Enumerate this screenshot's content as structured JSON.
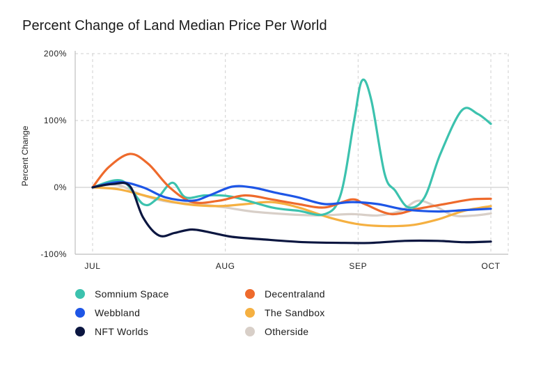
{
  "chart_data": {
    "type": "line",
    "title": "Percent Change of Land Median Price Per World",
    "ylabel": "Percent Change",
    "xlabel": "",
    "x_ticks": [
      "JUL",
      "AUG",
      "SEP",
      "OCT"
    ],
    "x_range": [
      0,
      3
    ],
    "y_ticks": [
      {
        "value": 200,
        "label": "200%"
      },
      {
        "value": 100,
        "label": "100%"
      },
      {
        "value": 0,
        "label": "0%"
      },
      {
        "value": -100,
        "label": "-100%"
      }
    ],
    "ylim": [
      -100,
      200
    ],
    "grid": "dashed",
    "legend_position": "bottom",
    "series": [
      {
        "name": "Somnium Space",
        "color": "#3cc2ae",
        "points": [
          [
            0,
            0
          ],
          [
            0.22,
            10
          ],
          [
            0.38,
            -25
          ],
          [
            0.48,
            -18
          ],
          [
            0.6,
            7
          ],
          [
            0.7,
            -15
          ],
          [
            0.85,
            -12
          ],
          [
            1.05,
            -14
          ],
          [
            1.35,
            -30
          ],
          [
            1.55,
            -35
          ],
          [
            1.75,
            -40
          ],
          [
            1.87,
            -10
          ],
          [
            1.97,
            100
          ],
          [
            2.03,
            160
          ],
          [
            2.1,
            130
          ],
          [
            2.2,
            20
          ],
          [
            2.28,
            -5
          ],
          [
            2.38,
            -30
          ],
          [
            2.5,
            -15
          ],
          [
            2.62,
            50
          ],
          [
            2.78,
            115
          ],
          [
            2.9,
            110
          ],
          [
            3.0,
            95
          ]
        ]
      },
      {
        "name": "Decentraland",
        "color": "#ee6a2c",
        "points": [
          [
            0,
            0
          ],
          [
            0.12,
            30
          ],
          [
            0.28,
            50
          ],
          [
            0.42,
            35
          ],
          [
            0.58,
            0
          ],
          [
            0.75,
            -22
          ],
          [
            0.95,
            -20
          ],
          [
            1.15,
            -12
          ],
          [
            1.35,
            -18
          ],
          [
            1.55,
            -25
          ],
          [
            1.75,
            -30
          ],
          [
            1.95,
            -18
          ],
          [
            2.05,
            -25
          ],
          [
            2.25,
            -40
          ],
          [
            2.45,
            -32
          ],
          [
            2.65,
            -25
          ],
          [
            2.85,
            -18
          ],
          [
            3.0,
            -17
          ]
        ]
      },
      {
        "name": "Webbland",
        "color": "#1e56e6",
        "points": [
          [
            0,
            0
          ],
          [
            0.2,
            8
          ],
          [
            0.38,
            0
          ],
          [
            0.55,
            -15
          ],
          [
            0.75,
            -20
          ],
          [
            0.88,
            -12
          ],
          [
            1.05,
            1
          ],
          [
            1.2,
            0
          ],
          [
            1.38,
            -8
          ],
          [
            1.55,
            -15
          ],
          [
            1.75,
            -25
          ],
          [
            1.95,
            -22
          ],
          [
            2.15,
            -25
          ],
          [
            2.35,
            -33
          ],
          [
            2.6,
            -36
          ],
          [
            2.8,
            -34
          ],
          [
            3.0,
            -32
          ]
        ]
      },
      {
        "name": "The Sandbox",
        "color": "#f5b041",
        "points": [
          [
            0,
            0
          ],
          [
            0.2,
            -3
          ],
          [
            0.45,
            -15
          ],
          [
            0.7,
            -25
          ],
          [
            0.95,
            -28
          ],
          [
            1.15,
            -25
          ],
          [
            1.35,
            -22
          ],
          [
            1.55,
            -30
          ],
          [
            1.78,
            -45
          ],
          [
            2.0,
            -55
          ],
          [
            2.22,
            -58
          ],
          [
            2.42,
            -56
          ],
          [
            2.6,
            -48
          ],
          [
            2.8,
            -35
          ],
          [
            3.0,
            -28
          ]
        ]
      },
      {
        "name": "NFT Worlds",
        "color": "#0b1640",
        "points": [
          [
            0,
            0
          ],
          [
            0.15,
            5
          ],
          [
            0.28,
            2
          ],
          [
            0.38,
            -45
          ],
          [
            0.5,
            -72
          ],
          [
            0.62,
            -68
          ],
          [
            0.75,
            -63
          ],
          [
            0.9,
            -68
          ],
          [
            1.05,
            -74
          ],
          [
            1.3,
            -78
          ],
          [
            1.6,
            -82
          ],
          [
            1.9,
            -83
          ],
          [
            2.1,
            -83
          ],
          [
            2.35,
            -80
          ],
          [
            2.6,
            -80
          ],
          [
            2.8,
            -82
          ],
          [
            3.0,
            -81
          ]
        ]
      },
      {
        "name": "Otherside",
        "color": "#d8cfc8",
        "points": [
          [
            0,
            0
          ],
          [
            0.18,
            4
          ],
          [
            0.38,
            -12
          ],
          [
            0.58,
            -22
          ],
          [
            0.8,
            -25
          ],
          [
            1.0,
            -30
          ],
          [
            1.2,
            -36
          ],
          [
            1.45,
            -40
          ],
          [
            1.7,
            -42
          ],
          [
            1.95,
            -40
          ],
          [
            2.15,
            -42
          ],
          [
            2.32,
            -35
          ],
          [
            2.45,
            -20
          ],
          [
            2.58,
            -28
          ],
          [
            2.72,
            -42
          ],
          [
            2.88,
            -42
          ],
          [
            3.0,
            -39
          ]
        ]
      }
    ]
  }
}
